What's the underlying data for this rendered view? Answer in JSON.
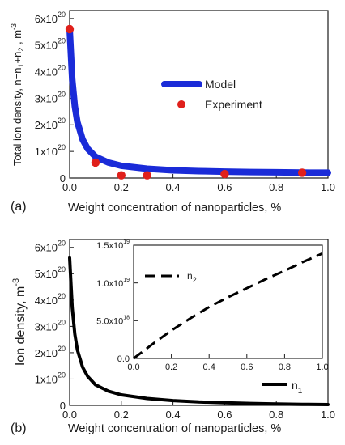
{
  "panels": [
    {
      "panel_label": "(a)",
      "xlabel": "Weight concentration of nanoparticles, %",
      "ylabel": "Total ion density, n=n₁+n₂ , m⁻³",
      "xlim": [
        0,
        1.0
      ],
      "ylim": [
        0,
        6.3e+20
      ],
      "xticks": [
        0.0,
        0.2,
        0.4,
        0.6,
        0.8,
        1.0
      ],
      "xtick_labels": [
        "0.0",
        "0.2",
        "0.4",
        "0.6",
        "0.8",
        "1.0"
      ],
      "yticks": [
        0,
        1e+20,
        2e+20,
        3e+20,
        4e+20,
        5e+20,
        6e+20
      ],
      "ytick_labels": [
        "0",
        "1x10",
        "2x10",
        "3x10",
        "4x10",
        "5x10",
        "6x10"
      ],
      "ytick_exponent": "20",
      "legend_position": "center-right"
    },
    {
      "panel_label": "(b)",
      "xlabel": "Weight concentration of nanoparticles, %",
      "ylabel": "Ion density, m⁻³",
      "xlim": [
        0,
        1.0
      ],
      "ylim": [
        0,
        6.3e+20
      ],
      "xticks": [
        0.0,
        0.2,
        0.4,
        0.6,
        0.8,
        1.0
      ],
      "xtick_labels": [
        "0.0",
        "0.2",
        "0.4",
        "0.6",
        "0.8",
        "1.0"
      ],
      "yticks": [
        0,
        1e+20,
        2e+20,
        3e+20,
        4e+20,
        5e+20,
        6e+20
      ],
      "ytick_labels": [
        "0",
        "1x10",
        "2x10",
        "3x10",
        "4x10",
        "5x10",
        "6x10"
      ],
      "ytick_exponent": "20",
      "legend_position": "bottom-right",
      "inset": {
        "xlim": [
          0,
          1.0
        ],
        "ylim": [
          0,
          1.5e+19
        ],
        "xticks": [
          0.0,
          0.2,
          0.4,
          0.6,
          0.8,
          1.0
        ],
        "xtick_labels": [
          "0.0",
          "0.2",
          "0.4",
          "0.6",
          "0.8",
          "1.0"
        ],
        "yticks": [
          0,
          5e+18,
          1e+19,
          1.5e+19
        ],
        "ytick_labels": [
          "0.0",
          "5.0x10",
          "1.0x10",
          "1.5x10"
        ],
        "ytick_exponents": [
          "",
          "18",
          "19",
          "19"
        ],
        "legend_position": "top-left"
      }
    }
  ],
  "chart_data": [
    {
      "type": "line",
      "series": [
        {
          "name": "Model",
          "style": "line",
          "color": "#1a2bd8",
          "x": [
            0.0,
            0.01,
            0.02,
            0.03,
            0.05,
            0.07,
            0.1,
            0.15,
            0.2,
            0.3,
            0.4,
            0.5,
            0.6,
            0.7,
            0.8,
            0.9,
            1.0
          ],
          "y": [
            5.6e+20,
            3.7e+20,
            2.7e+20,
            2.1e+20,
            1.45e+20,
            1.1e+20,
            8e+19,
            5.8e+19,
            4.6e+19,
            3.5e+19,
            2.9e+19,
            2.6e+19,
            2.4e+19,
            2.25e+19,
            2.15e+19,
            2.05e+19,
            2e+19
          ]
        },
        {
          "name": "Experiment",
          "style": "scatter",
          "color": "#e0201b",
          "x": [
            0.0,
            0.1,
            0.2,
            0.3,
            0.6,
            0.9
          ],
          "y": [
            5.6e+20,
            5.8e+19,
            1e+19,
            1e+19,
            1.5e+19,
            2e+19
          ]
        }
      ]
    },
    {
      "type": "line",
      "series": [
        {
          "name": "n",
          "name_sub": "1",
          "style": "line",
          "color": "#000000",
          "x": [
            0.0,
            0.01,
            0.02,
            0.03,
            0.05,
            0.07,
            0.1,
            0.15,
            0.2,
            0.3,
            0.4,
            0.5,
            0.6,
            0.7,
            0.8,
            0.9,
            1.0
          ],
          "y": [
            5.6e+20,
            3.7e+20,
            2.7e+20,
            2.1e+20,
            1.45e+20,
            1.1e+20,
            7.8e+19,
            5.4e+19,
            4e+19,
            2.6e+19,
            1.8e+19,
            1.3e+19,
            1e+19,
            7.5e+18,
            5.5e+18,
            4e+18,
            3e+18
          ]
        }
      ]
    },
    {
      "type": "line",
      "series": [
        {
          "name": "n",
          "name_sub": "2",
          "style": "dashed",
          "color": "#000000",
          "x": [
            0.0,
            0.1,
            0.2,
            0.3,
            0.4,
            0.5,
            0.6,
            0.7,
            0.8,
            0.9,
            1.0
          ],
          "y": [
            0,
            1.9e+18,
            3.7e+18,
            5.3e+18,
            6.8e+18,
            8.1e+18,
            9.3e+18,
            1.05e+19,
            1.16e+19,
            1.28e+19,
            1.39e+19
          ]
        }
      ]
    }
  ]
}
